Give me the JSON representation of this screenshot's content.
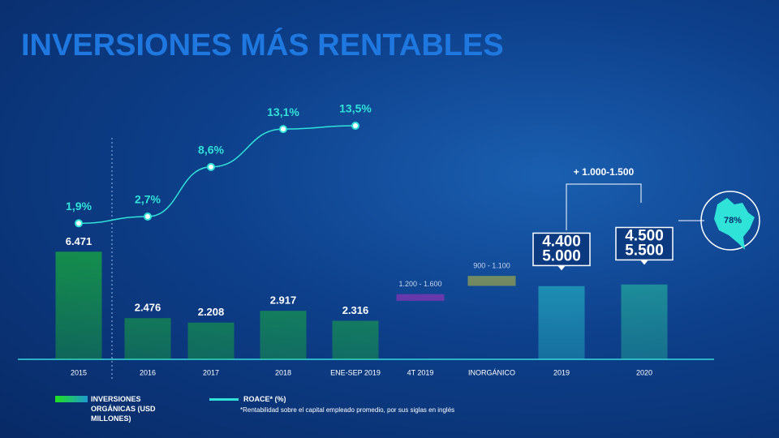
{
  "chart_data": {
    "type": "bar",
    "title": "INVERSIONES MÁS RENTABLES",
    "categories": [
      "2015",
      "2016",
      "2017",
      "2018",
      "ENE-SEP 2019",
      "4T 2019",
      "INORGÁNICO",
      "2019",
      "2020"
    ],
    "series": [
      {
        "name": "INVERSIONES ORGÁNICAS (USD MILLONES)",
        "color": "#1fe01f",
        "values": [
          6471,
          2476,
          2208,
          2917,
          2316,
          null,
          null,
          null,
          null
        ],
        "value_labels": [
          "6.471",
          "2.476",
          "2.208",
          "2.917",
          "2.316",
          null,
          null,
          null,
          null
        ]
      },
      {
        "name": "ROACE* (%)",
        "type": "line",
        "color": "#2fe3d8",
        "values": [
          1.9,
          2.7,
          8.6,
          13.1,
          13.5,
          null,
          null,
          null,
          null
        ],
        "value_labels": [
          "1,9%",
          "2,7%",
          "8,6%",
          "13,1%",
          "13,5%",
          null,
          null,
          null,
          null
        ]
      },
      {
        "type": "range",
        "values": [
          null,
          null,
          null,
          null,
          null,
          [
            1200,
            1600
          ],
          [
            900,
            1100
          ],
          [
            4400,
            5000
          ],
          [
            4500,
            5500
          ]
        ],
        "value_labels": [
          null,
          null,
          null,
          null,
          null,
          "1.200 - 1.600",
          "900 - 1.100",
          [
            "4.400",
            "5.000"
          ],
          [
            "4.500",
            "5.500"
          ]
        ],
        "colors": [
          null,
          null,
          null,
          null,
          null,
          "#e02bd0",
          "#e8d824",
          "#2fe3d8",
          "#2fe3a0"
        ]
      }
    ],
    "annotations": [
      "+ 1.000-1.500",
      "78%"
    ],
    "footnote": "*Rentabilidad sobre el capital empleado promedio, por sus siglas en inglés"
  }
}
